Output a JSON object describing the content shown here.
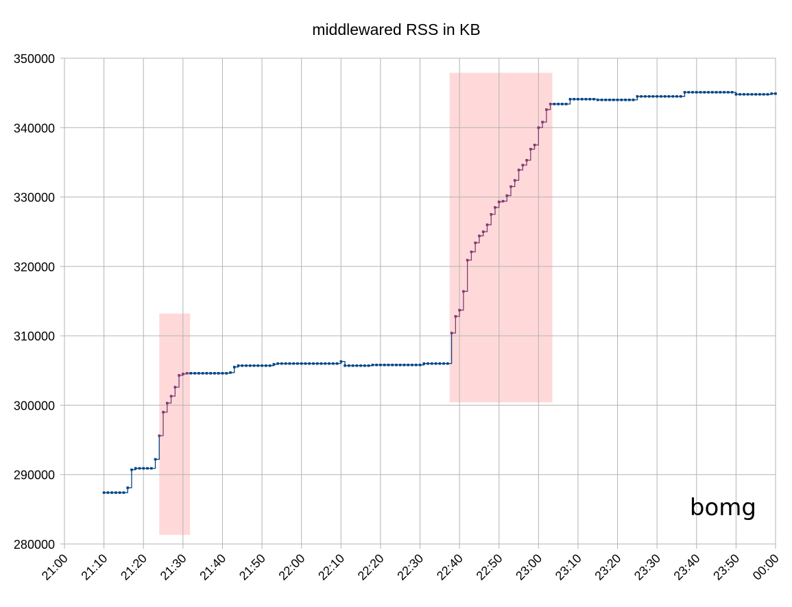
{
  "chart_data": {
    "type": "line",
    "title": "middleware​d RSS in KB",
    "xlabel": "",
    "ylabel": "",
    "x_range_minutes": [
      0,
      180
    ],
    "ylim": [
      280000,
      350000
    ],
    "y_ticks": [
      280000,
      290000,
      300000,
      310000,
      320000,
      330000,
      340000,
      350000
    ],
    "y_tick_labels": [
      "280000",
      "290000",
      "300000",
      "310000",
      "320000",
      "330000",
      "340000",
      "350000"
    ],
    "x_ticks": [
      0,
      10,
      20,
      30,
      40,
      50,
      60,
      70,
      80,
      90,
      100,
      110,
      120,
      130,
      140,
      150,
      160,
      170,
      180
    ],
    "x_tick_labels": [
      "21:00",
      "21:10",
      "21:20",
      "21:30",
      "21:40",
      "21:50",
      "22:00",
      "22:10",
      "22:20",
      "22:30",
      "22:40",
      "22:50",
      "23:00",
      "23:10",
      "23:20",
      "23:30",
      "23:40",
      "23:50",
      "00:00"
    ],
    "grid": true,
    "annotation": "bomg",
    "colors": {
      "series": "#004586",
      "highlight_series": "#7e3a72",
      "highlight_band": "#ffd7d7",
      "grid": "#b3b3b3"
    },
    "highlight_regions": [
      {
        "x": [
          24,
          31.8
        ],
        "y": [
          281300,
          313200
        ]
      },
      {
        "x": [
          97.5,
          123.5
        ],
        "y": [
          300400,
          347900
        ]
      }
    ],
    "series": [
      {
        "values_x_minutes": [
          10,
          11,
          12,
          13,
          14,
          15,
          16,
          17,
          18,
          19,
          20,
          21,
          22,
          23,
          24,
          25,
          26,
          27,
          28,
          29,
          30,
          31,
          32,
          33,
          34,
          35,
          36,
          37,
          38,
          39,
          40,
          41,
          42,
          43,
          44,
          45,
          46,
          47,
          48,
          49,
          50,
          51,
          52,
          53,
          54,
          55,
          56,
          57,
          58,
          59,
          60,
          61,
          62,
          63,
          64,
          65,
          66,
          67,
          68,
          69,
          70,
          71,
          72,
          73,
          74,
          75,
          76,
          77,
          78,
          79,
          80,
          81,
          82,
          83,
          84,
          85,
          86,
          87,
          88,
          89,
          90,
          91,
          92,
          93,
          94,
          95,
          96,
          97,
          98,
          99,
          100,
          101,
          102,
          103,
          104,
          105,
          106,
          107,
          108,
          109,
          110,
          111,
          112,
          113,
          114,
          115,
          116,
          117,
          118,
          119,
          120,
          121,
          122,
          123,
          124,
          125,
          126,
          127,
          128,
          129,
          130,
          131,
          132,
          133,
          134,
          135,
          136,
          137,
          138,
          139,
          140,
          141,
          142,
          143,
          144,
          145,
          146,
          147,
          148,
          149,
          150,
          151,
          152,
          153,
          154,
          155,
          156,
          157,
          158,
          159,
          160,
          161,
          162,
          163,
          164,
          165,
          166,
          167,
          168,
          169,
          170,
          171,
          172,
          173,
          174,
          175,
          176,
          177,
          178,
          179,
          180
        ],
        "values_kb": [
          287400,
          287400,
          287400,
          287400,
          287400,
          287400,
          288100,
          290700,
          290900,
          290900,
          290900,
          290900,
          290900,
          292200,
          295600,
          299000,
          300300,
          301300,
          302600,
          304300,
          304500,
          304600,
          304600,
          304600,
          304600,
          304600,
          304600,
          304600,
          304600,
          304600,
          304600,
          304600,
          304700,
          305500,
          305700,
          305700,
          305700,
          305700,
          305700,
          305700,
          305700,
          305700,
          305700,
          305900,
          306000,
          306000,
          306000,
          306000,
          306000,
          306000,
          306000,
          306000,
          306000,
          306000,
          306000,
          306000,
          306000,
          306000,
          306000,
          306000,
          306300,
          305700,
          305700,
          305700,
          305700,
          305700,
          305700,
          305700,
          305800,
          305800,
          305800,
          305800,
          305800,
          305800,
          305800,
          305800,
          305800,
          305800,
          305800,
          305800,
          305800,
          306000,
          306000,
          306000,
          306000,
          306000,
          306000,
          306000,
          310400,
          312800,
          313700,
          316400,
          320900,
          322100,
          323400,
          324400,
          325000,
          326000,
          327500,
          328500,
          329300,
          329400,
          330200,
          331500,
          332400,
          333900,
          334600,
          335300,
          336900,
          337500,
          340000,
          340800,
          342600,
          343400,
          343400,
          343400,
          343400,
          343400,
          344100,
          344100,
          344100,
          344100,
          344100,
          344100,
          344100,
          344000,
          344000,
          344000,
          344000,
          344000,
          344000,
          344000,
          344000,
          344000,
          344000,
          344500,
          344500,
          344500,
          344500,
          344500,
          344500,
          344500,
          344500,
          344500,
          344500,
          344500,
          344500,
          345100,
          345100,
          345100,
          345100,
          345100,
          345100,
          345100,
          345100,
          345100,
          345100,
          345100,
          345100,
          345100,
          344800,
          344800,
          344800,
          344800,
          344800,
          344800,
          344800,
          344800,
          344800,
          344900,
          344900,
          344900,
          345400,
          345100,
          345100,
          345100,
          345100,
          345100,
          345100,
          345100
        ]
      }
    ]
  }
}
